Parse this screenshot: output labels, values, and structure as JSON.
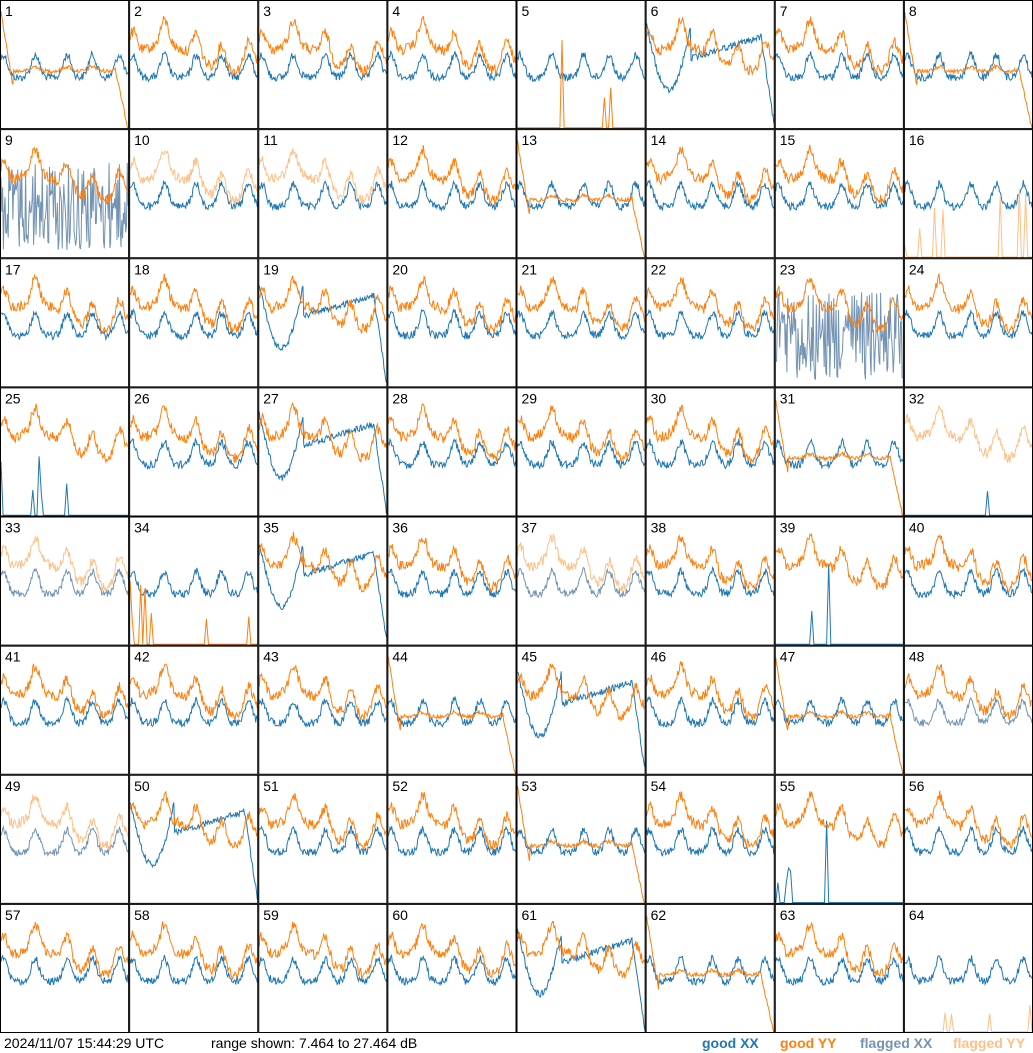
{
  "footer": {
    "timestamp": "2024/11/07 15:44:29 UTC",
    "range_text": "range shown: 7.464 to 27.464 dB"
  },
  "legend": {
    "good_xx": "good XX",
    "good_yy": "good YY",
    "flagged_xx": "flagged XX",
    "flagged_yy": "flagged YY"
  },
  "colors": {
    "good_xx": "#1f77b4",
    "good_yy": "#ff7f0e",
    "flagged_xx": "#7393b3",
    "flagged_yy": "#ffbf86"
  },
  "chart_data": {
    "type": "line",
    "grid": "8x8 small-multiple panels, numbered 1-64",
    "ylim_db": [
      7.464,
      27.464
    ],
    "series_status": {
      "1": "xx:good,yy:good",
      "2": "xx:good,yy:good",
      "3": "xx:good,yy:good",
      "4": "xx:good,yy:good",
      "5": "xx:good,yy:good(spikes)",
      "6": "xx:good,yy:good",
      "7": "xx:good,yy:good",
      "8": "xx:good,yy:good",
      "9": "xx:flagged,yy:good",
      "10": "xx:good,yy:flagged",
      "11": "xx:good,yy:flagged",
      "12": "xx:good,yy:good",
      "13": "xx:good,yy:good",
      "14": "xx:good,yy:good",
      "15": "xx:good,yy:good",
      "16": "xx:good,yy:flagged(spikes)",
      "17": "xx:good,yy:good",
      "18": "xx:good,yy:good",
      "19": "xx:good,yy:good",
      "20": "xx:good,yy:good",
      "21": "xx:good,yy:good",
      "22": "xx:good,yy:good",
      "23": "xx:flagged,yy:good",
      "24": "xx:good,yy:good",
      "25": "xx:good(spike),yy:good",
      "26": "xx:good,yy:good",
      "27": "xx:good,yy:good",
      "28": "xx:good,yy:good",
      "29": "xx:good,yy:good",
      "30": "xx:good,yy:good",
      "31": "xx:good,yy:good",
      "32": "xx:good(spikes),yy:flagged",
      "33": "xx:flagged,yy:flagged",
      "34": "xx:good,yy:good(spikes)",
      "35": "xx:good,yy:good",
      "36": "xx:good,yy:good",
      "37": "xx:flagged,yy:flagged",
      "38": "xx:good,yy:good",
      "39": "xx:good(spikes),yy:good",
      "40": "xx:good,yy:good",
      "41": "xx:good,yy:good",
      "42": "xx:good,yy:good",
      "43": "xx:good,yy:good",
      "44": "xx:good,yy:good",
      "45": "xx:good,yy:good",
      "46": "xx:good,yy:good",
      "47": "xx:good,yy:good",
      "48": "xx:flagged,yy:good",
      "49": "xx:flagged,yy:flagged",
      "50": "xx:good,yy:good",
      "51": "xx:good,yy:good",
      "52": "xx:good,yy:good",
      "53": "xx:good,yy:good",
      "54": "xx:good,yy:good",
      "55": "xx:good(spikes),yy:good",
      "56": "xx:good,yy:good",
      "57": "xx:good,yy:good",
      "58": "xx:good,yy:good",
      "59": "xx:good,yy:good",
      "60": "xx:good,yy:good",
      "61": "xx:good,yy:good",
      "62": "xx:good,yy:good",
      "63": "xx:good,yy:good",
      "64": "xx:good,yy:flagged(spike)"
    }
  }
}
